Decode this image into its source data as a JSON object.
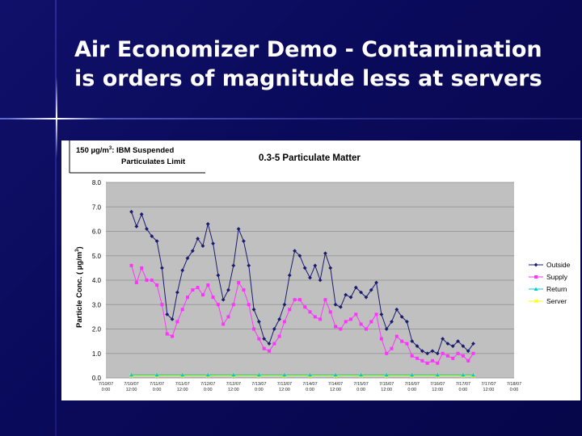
{
  "slide": {
    "title_line1": "Air Economizer Demo - Contamination",
    "title_line2": "is orders of magnitude less at servers"
  },
  "chart_data": {
    "type": "line",
    "title": "0.3-5 Particulate Matter",
    "annotation": {
      "line1_value": "150 µg/m",
      "line1_sup": "3",
      "line1_rest": ": IBM Suspended",
      "line2": "Particulates Limit"
    },
    "ylabel_main": "Particle Conc. ( µg/m",
    "ylabel_sup": "3",
    "ylabel_close": ")",
    "ylim": [
      0,
      8
    ],
    "yticks": [
      "0.0",
      "1.0",
      "2.0",
      "3.0",
      "4.0",
      "5.0",
      "6.0",
      "7.0",
      "8.0"
    ],
    "xlim": [
      0,
      16
    ],
    "xtick_labels": [
      [
        "7/10/07",
        "0:00"
      ],
      [
        "7/10/07",
        "12:00"
      ],
      [
        "7/11/07",
        "0:00"
      ],
      [
        "7/11/07",
        "12:00"
      ],
      [
        "7/12/07",
        "0:00"
      ],
      [
        "7/12/07",
        "12:00"
      ],
      [
        "7/13/07",
        "0:00"
      ],
      [
        "7/13/07",
        "12:00"
      ],
      [
        "7/14/07",
        "0:00"
      ],
      [
        "7/14/07",
        "12:00"
      ],
      [
        "7/15/07",
        "0:00"
      ],
      [
        "7/15/07",
        "12:00"
      ],
      [
        "7/16/07",
        "0:00"
      ],
      [
        "7/16/07",
        "12:00"
      ],
      [
        "7/17/07",
        "0:00"
      ],
      [
        "7/17/07",
        "12:00"
      ],
      [
        "7/18/07",
        "0:00"
      ]
    ],
    "legend": {
      "placement": "right"
    },
    "series": [
      {
        "name": "Outside",
        "color": "#1a1a6e",
        "marker": "diamond",
        "points": [
          [
            1,
            6.8
          ],
          [
            1.2,
            6.2
          ],
          [
            1.4,
            6.7
          ],
          [
            1.6,
            6.1
          ],
          [
            1.8,
            5.8
          ],
          [
            2,
            5.6
          ],
          [
            2.2,
            4.5
          ],
          [
            2.4,
            2.6
          ],
          [
            2.6,
            2.4
          ],
          [
            2.8,
            3.5
          ],
          [
            3,
            4.4
          ],
          [
            3.2,
            4.9
          ],
          [
            3.4,
            5.2
          ],
          [
            3.6,
            5.7
          ],
          [
            3.8,
            5.4
          ],
          [
            4,
            6.3
          ],
          [
            4.2,
            5.5
          ],
          [
            4.4,
            4.2
          ],
          [
            4.6,
            3.2
          ],
          [
            4.8,
            3.6
          ],
          [
            5,
            4.6
          ],
          [
            5.2,
            6.1
          ],
          [
            5.4,
            5.6
          ],
          [
            5.6,
            4.6
          ],
          [
            5.8,
            2.8
          ],
          [
            6,
            2.3
          ],
          [
            6.2,
            1.6
          ],
          [
            6.4,
            1.4
          ],
          [
            6.6,
            2.0
          ],
          [
            6.8,
            2.4
          ],
          [
            7,
            3.0
          ],
          [
            7.2,
            4.2
          ],
          [
            7.4,
            5.2
          ],
          [
            7.6,
            5.0
          ],
          [
            7.8,
            4.5
          ],
          [
            8,
            4.1
          ],
          [
            8.2,
            4.6
          ],
          [
            8.4,
            4.0
          ],
          [
            8.6,
            5.1
          ],
          [
            8.8,
            4.5
          ],
          [
            9,
            3.0
          ],
          [
            9.2,
            2.9
          ],
          [
            9.4,
            3.4
          ],
          [
            9.6,
            3.3
          ],
          [
            9.8,
            3.7
          ],
          [
            10,
            3.5
          ],
          [
            10.2,
            3.3
          ],
          [
            10.4,
            3.6
          ],
          [
            10.6,
            3.9
          ],
          [
            10.8,
            2.6
          ],
          [
            11,
            2.0
          ],
          [
            11.2,
            2.3
          ],
          [
            11.4,
            2.8
          ],
          [
            11.6,
            2.5
          ],
          [
            11.8,
            2.3
          ],
          [
            12,
            1.5
          ],
          [
            12.2,
            1.3
          ],
          [
            12.4,
            1.1
          ],
          [
            12.6,
            1.0
          ],
          [
            12.8,
            1.1
          ],
          [
            13,
            1.0
          ],
          [
            13.2,
            1.6
          ],
          [
            13.4,
            1.4
          ],
          [
            13.6,
            1.3
          ],
          [
            13.8,
            1.5
          ],
          [
            14,
            1.3
          ],
          [
            14.2,
            1.1
          ],
          [
            14.4,
            1.4
          ]
        ]
      },
      {
        "name": "Supply",
        "color": "#ff33ff",
        "marker": "square",
        "points": [
          [
            1,
            4.6
          ],
          [
            1.2,
            3.9
          ],
          [
            1.4,
            4.5
          ],
          [
            1.6,
            4.0
          ],
          [
            1.8,
            4.0
          ],
          [
            2,
            3.8
          ],
          [
            2.2,
            3.0
          ],
          [
            2.4,
            1.8
          ],
          [
            2.6,
            1.7
          ],
          [
            2.8,
            2.3
          ],
          [
            3,
            2.8
          ],
          [
            3.2,
            3.3
          ],
          [
            3.4,
            3.6
          ],
          [
            3.6,
            3.7
          ],
          [
            3.8,
            3.4
          ],
          [
            4,
            3.8
          ],
          [
            4.2,
            3.3
          ],
          [
            4.4,
            3.0
          ],
          [
            4.6,
            2.2
          ],
          [
            4.8,
            2.5
          ],
          [
            5,
            3.0
          ],
          [
            5.2,
            3.9
          ],
          [
            5.4,
            3.6
          ],
          [
            5.6,
            3.0
          ],
          [
            5.8,
            2.0
          ],
          [
            6,
            1.6
          ],
          [
            6.2,
            1.2
          ],
          [
            6.4,
            1.1
          ],
          [
            6.6,
            1.4
          ],
          [
            6.8,
            1.7
          ],
          [
            7,
            2.3
          ],
          [
            7.2,
            2.8
          ],
          [
            7.4,
            3.2
          ],
          [
            7.6,
            3.2
          ],
          [
            7.8,
            2.9
          ],
          [
            8,
            2.7
          ],
          [
            8.2,
            2.5
          ],
          [
            8.4,
            2.4
          ],
          [
            8.6,
            3.2
          ],
          [
            8.8,
            2.7
          ],
          [
            9,
            2.1
          ],
          [
            9.2,
            2.0
          ],
          [
            9.4,
            2.3
          ],
          [
            9.6,
            2.4
          ],
          [
            9.8,
            2.6
          ],
          [
            10,
            2.2
          ],
          [
            10.2,
            2.0
          ],
          [
            10.4,
            2.3
          ],
          [
            10.6,
            2.6
          ],
          [
            10.8,
            1.6
          ],
          [
            11,
            1.0
          ],
          [
            11.2,
            1.2
          ],
          [
            11.4,
            1.7
          ],
          [
            11.6,
            1.5
          ],
          [
            11.8,
            1.4
          ],
          [
            12,
            0.9
          ],
          [
            12.2,
            0.8
          ],
          [
            12.4,
            0.7
          ],
          [
            12.6,
            0.6
          ],
          [
            12.8,
            0.7
          ],
          [
            13,
            0.6
          ],
          [
            13.2,
            1.0
          ],
          [
            13.4,
            0.9
          ],
          [
            13.6,
            0.8
          ],
          [
            13.8,
            1.0
          ],
          [
            14,
            0.9
          ],
          [
            14.2,
            0.7
          ],
          [
            14.4,
            1.0
          ]
        ]
      },
      {
        "name": "Return",
        "color": "#00cccc",
        "marker": "triangle",
        "points": [
          [
            1,
            0.12
          ],
          [
            2,
            0.12
          ],
          [
            3,
            0.12
          ],
          [
            4,
            0.12
          ],
          [
            5,
            0.12
          ],
          [
            6,
            0.12
          ],
          [
            7,
            0.12
          ],
          [
            8,
            0.12
          ],
          [
            9,
            0.12
          ],
          [
            10,
            0.12
          ],
          [
            11,
            0.12
          ],
          [
            12,
            0.12
          ],
          [
            13,
            0.12
          ],
          [
            14,
            0.12
          ],
          [
            14.4,
            0.12
          ]
        ]
      },
      {
        "name": "Server",
        "color": "#ffff00",
        "marker": "x",
        "points": [
          [
            1,
            0.08
          ],
          [
            2,
            0.08
          ],
          [
            3,
            0.08
          ],
          [
            4,
            0.08
          ],
          [
            5,
            0.08
          ],
          [
            6,
            0.08
          ],
          [
            7,
            0.08
          ],
          [
            8,
            0.08
          ],
          [
            9,
            0.08
          ],
          [
            10,
            0.08
          ],
          [
            11,
            0.08
          ],
          [
            12,
            0.08
          ],
          [
            13,
            0.08
          ],
          [
            14,
            0.08
          ],
          [
            14.4,
            0.08
          ]
        ]
      }
    ]
  }
}
